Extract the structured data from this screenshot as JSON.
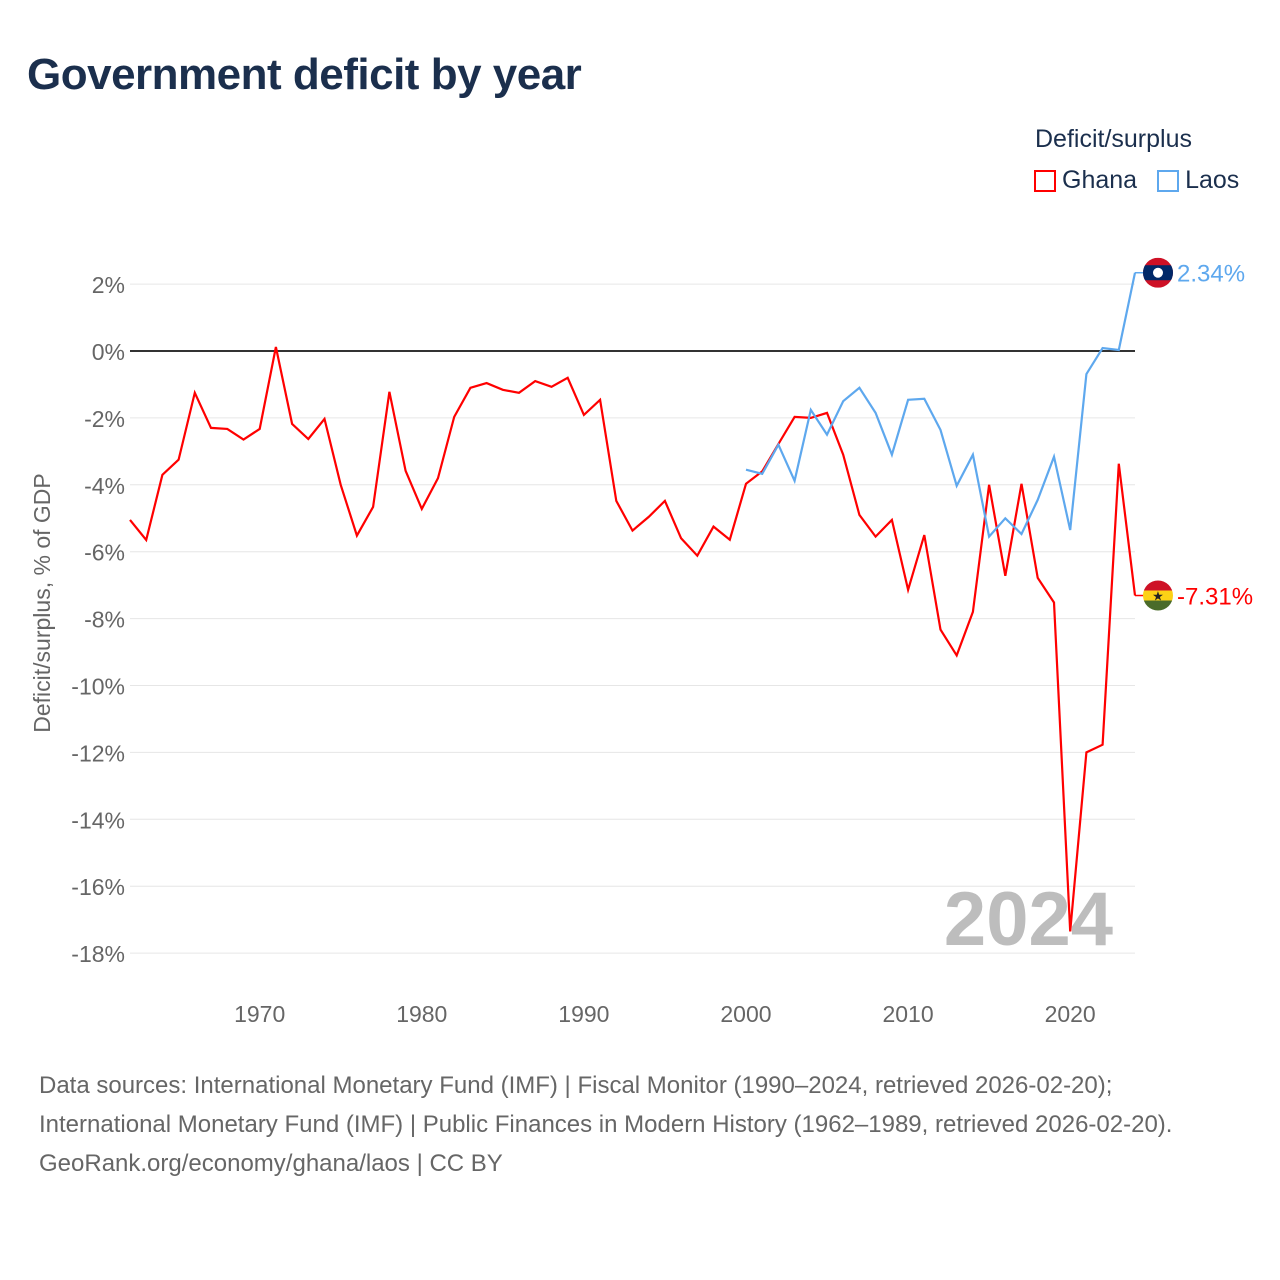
{
  "title": "Government deficit by year",
  "legend": {
    "title": "Deficit/surplus",
    "items": [
      {
        "name": "Ghana",
        "color": "#ff0000"
      },
      {
        "name": "Laos",
        "color": "#5ea8ee"
      }
    ]
  },
  "watermark_year": "2024",
  "chart_data": {
    "type": "line",
    "title": "Government deficit by year",
    "xlabel": "",
    "ylabel": "Deficit/surplus, % of GDP",
    "xlim": [
      1962,
      2024
    ],
    "ylim": [
      -18.9,
      2.5
    ],
    "x_ticks": [
      1970,
      1980,
      1990,
      2000,
      2010,
      2020
    ],
    "y_ticks": [
      2,
      0,
      -2,
      -4,
      -6,
      -8,
      -10,
      -12,
      -14,
      -16,
      -18
    ],
    "y_tick_labels": [
      "2%",
      "0%",
      "-2%",
      "-4%",
      "-6%",
      "-8%",
      "-10%",
      "-12%",
      "-14%",
      "-16%",
      "-18%"
    ],
    "grid": true,
    "legend_position": "top-right",
    "series": [
      {
        "name": "Ghana",
        "color": "#ff0000",
        "end_label": "-7.31%",
        "flag": "ghana",
        "x_start": 1962,
        "values": [
          -5.05,
          -5.65,
          -3.7,
          -3.25,
          -1.25,
          -2.3,
          -2.33,
          -2.65,
          -2.33,
          0.12,
          -2.18,
          -2.63,
          -2.03,
          -4.0,
          -5.52,
          -4.66,
          -1.22,
          -3.58,
          -4.72,
          -3.8,
          -1.97,
          -1.1,
          -0.96,
          -1.16,
          -1.25,
          -0.9,
          -1.07,
          -0.8,
          -1.91,
          -1.46,
          -4.48,
          -5.37,
          -4.96,
          -4.48,
          -5.6,
          -6.12,
          -5.25,
          -5.64,
          -3.97,
          -3.6,
          -2.78,
          -1.97,
          -2.0,
          -1.85,
          -3.1,
          -4.9,
          -5.55,
          -5.05,
          -7.14,
          -5.5,
          -8.33,
          -9.1,
          -7.8,
          -4.0,
          -6.72,
          -3.97,
          -6.78,
          -7.52,
          -17.35,
          -12.0,
          -11.77,
          -3.37,
          -7.31
        ]
      },
      {
        "name": "Laos",
        "color": "#5ea8ee",
        "end_label": "2.34%",
        "flag": "laos",
        "x_start": 2000,
        "values": [
          -3.55,
          -3.67,
          -2.8,
          -3.88,
          -1.76,
          -2.5,
          -1.5,
          -1.1,
          -1.85,
          -3.1,
          -1.46,
          -1.43,
          -2.36,
          -4.03,
          -3.1,
          -5.55,
          -5.0,
          -5.47,
          -4.45,
          -3.16,
          -5.35,
          -0.69,
          0.09,
          0.03,
          2.34
        ]
      }
    ]
  },
  "footer": {
    "sources": "Data sources: International Monetary Fund (IMF) | Fiscal Monitor (1990–2024, retrieved 2026-02-20); International Monetary Fund (IMF) | Public Finances in Modern History (1962–1989, retrieved 2026-02-20).",
    "attribution": "GeoRank.org/economy/ghana/laos | CC BY"
  }
}
